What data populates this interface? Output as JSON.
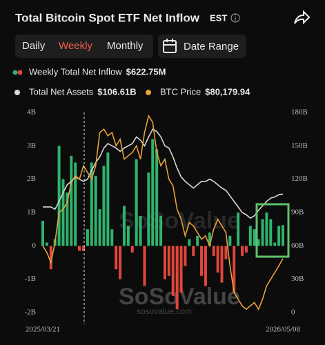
{
  "chart_data": {
    "type": "bar",
    "title": "Total Bitcoin Spot ETF Net Inflow",
    "timezone": "EST",
    "tabs": [
      "Daily",
      "Weekly",
      "Monthly"
    ],
    "active_tab": 1,
    "date_range": "Date Range",
    "watermark": "SoSoValue",
    "watermark_url": "sosovalue.com",
    "categories": [
      "2025/03/21",
      null,
      null,
      null,
      null,
      null,
      null,
      null,
      null,
      null,
      null,
      null,
      null,
      null,
      null,
      null,
      null,
      null,
      null,
      null,
      null,
      null,
      null,
      null,
      null,
      null,
      null,
      null,
      null,
      null,
      null,
      null,
      null,
      null,
      null,
      null,
      null,
      null,
      null,
      null,
      null,
      null,
      null,
      null,
      null,
      null,
      null,
      null,
      null,
      null,
      null,
      null,
      null,
      null,
      null,
      null,
      null,
      null,
      null,
      "2026/05/08"
    ],
    "series": [
      {
        "name": "Weekly Total Net Inflow",
        "type": "bar",
        "color": "#2fb36e",
        "negative_color": "#e0463b",
        "latest": "$622.75M",
        "values": [
          0.75,
          0.1,
          -0.7,
          0.2,
          3.0,
          2.0,
          1.6,
          2.7,
          2.5,
          -0.15,
          -0.15,
          0.5,
          2.5,
          2.1,
          1.1,
          2.4,
          2.8,
          0.5,
          -0.7,
          -1.0,
          1.2,
          0.6,
          -0.2,
          2.6,
          0.9,
          -1.2,
          2.2,
          3.2,
          2.9,
          0.9,
          -1.0,
          -0.9,
          -1.5,
          -1.9,
          -1.4,
          -0.6,
          0.2,
          -0.3,
          0.3,
          -0.9,
          -1.2,
          0.4,
          -0.3,
          -0.8,
          -1.1,
          -0.4,
          0.3,
          -1.4,
          1.0,
          -0.3,
          -0.2,
          0.6,
          0.5,
          0.2,
          0.8,
          1.0,
          0.8,
          0.1,
          0.6,
          0.62275
        ]
      },
      {
        "name": "Total Net Assets",
        "type": "line",
        "axis": "y2",
        "color": "#d9d9d9",
        "latest": "$106.61B",
        "values": [
          95,
          95,
          95,
          93,
          100,
          108,
          115,
          118,
          122,
          120,
          118,
          120,
          128,
          135,
          140,
          148,
          152,
          150,
          148,
          145,
          148,
          150,
          152,
          158,
          155,
          150,
          158,
          165,
          163,
          158,
          150,
          148,
          140,
          130,
          122,
          118,
          115,
          112,
          115,
          118,
          118,
          120,
          118,
          115,
          112,
          110,
          105,
          100,
          95,
          90,
          88,
          85,
          87,
          92,
          96,
          100,
          103,
          104,
          106,
          106.61
        ]
      },
      {
        "name": "BTC Price",
        "type": "line",
        "axis": "y3",
        "color": "#e8a23a",
        "latest": "$80,179.94",
        "values": [
          84000,
          82000,
          79000,
          85000,
          94000,
          95000,
          97000,
          103000,
          105000,
          104000,
          108000,
          106000,
          104000,
          108000,
          118000,
          119000,
          117000,
          118000,
          114000,
          116000,
          110000,
          111000,
          112000,
          114000,
          110000,
          118000,
          123000,
          121000,
          112000,
          108000,
          110000,
          104000,
          102000,
          95000,
          92000,
          87000,
          91000,
          90000,
          88000,
          86000,
          87000,
          84000,
          89000,
          92000,
          90000,
          88000,
          78000,
          70000,
          68000,
          66000,
          65000,
          66000,
          67000,
          65000,
          68000,
          72000,
          74000,
          76000,
          78000,
          80179.94
        ]
      }
    ],
    "ylim": [
      -2,
      4
    ],
    "yticks": [
      {
        "value": 4,
        "label": "4B"
      },
      {
        "value": 3,
        "label": "3B"
      },
      {
        "value": 2,
        "label": "2B"
      },
      {
        "value": 1,
        "label": "1B"
      },
      0,
      {
        "value": -1,
        "label": "-1B"
      },
      {
        "value": -2,
        "label": "-2B"
      }
    ],
    "y2lim": [
      0,
      180
    ],
    "y2ticks": [
      {
        "value": 180,
        "label": "180B"
      },
      {
        "value": 150,
        "label": "150B"
      },
      {
        "value": 120,
        "label": "120B"
      },
      {
        "value": 90,
        "label": "90B"
      },
      {
        "value": 60,
        "label": "60B"
      },
      {
        "value": 30,
        "label": "30B"
      },
      0
    ],
    "y3lim": [
      64000,
      124000
    ]
  }
}
